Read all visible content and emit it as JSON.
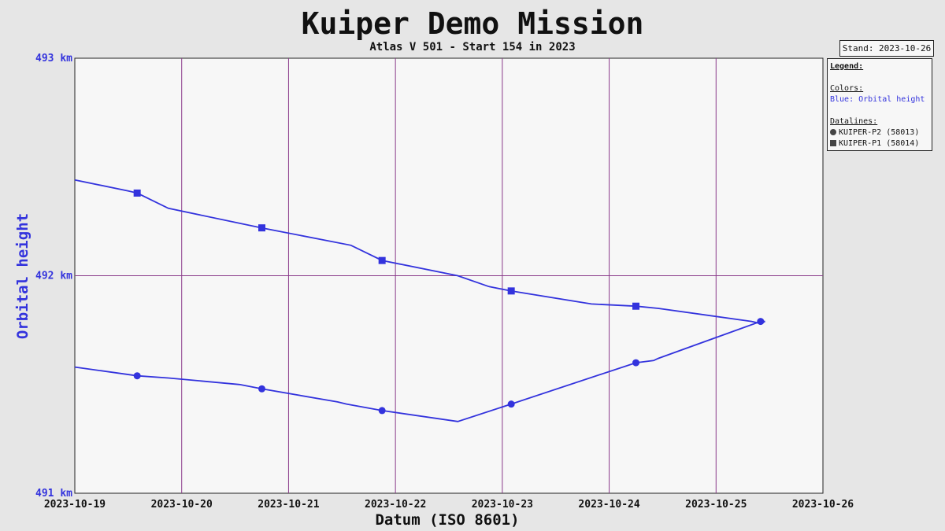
{
  "header": {
    "title": "Kuiper Demo Mission",
    "subtitle": "Atlas V 501 - Start 154 in 2023",
    "stand": "Stand: 2023-10-26"
  },
  "legend": {
    "heading": "Legend:",
    "colors_heading": "Colors:",
    "color_entry": "Blue: Orbital height",
    "datalines_heading": "Datalines:",
    "entries": [
      {
        "label": "KUIPER-P2 (58013)",
        "marker": "circle"
      },
      {
        "label": "KUIPER-P1 (58014)",
        "marker": "square"
      }
    ]
  },
  "colors": {
    "series": "#3333dd",
    "grid": "#8a3a8a",
    "plot_bg": "#f7f7f7"
  },
  "chart_data": {
    "type": "line",
    "title": "Kuiper Demo Mission",
    "subtitle": "Atlas V 501 - Start 154 in 2023",
    "xlabel": "Datum (ISO 8601)",
    "ylabel": "Orbital height",
    "xlim": [
      "2023-10-19",
      "2023-10-26"
    ],
    "ylim": [
      491,
      493
    ],
    "x_ticks": [
      "2023-10-19",
      "2023-10-20",
      "2023-10-21",
      "2023-10-22",
      "2023-10-23",
      "2023-10-24",
      "2023-10-25",
      "2023-10-26"
    ],
    "y_ticks": [
      {
        "value": 491,
        "label": "491 km"
      },
      {
        "value": 492,
        "label": "492 km"
      },
      {
        "value": 493,
        "label": "493 km"
      }
    ],
    "grid": true,
    "legend_position": "right",
    "series": [
      {
        "name": "KUIPER-P1 (58014)",
        "marker": "square",
        "points": [
          [
            "2023-10-19 00:00",
            492.44
          ],
          [
            "2023-10-19 12:00",
            492.39
          ],
          [
            "2023-10-19 14:00",
            492.38
          ],
          [
            "2023-10-19 21:00",
            492.31
          ],
          [
            "2023-10-20 18:00",
            492.22
          ],
          [
            "2023-10-21 14:00",
            492.14
          ],
          [
            "2023-10-21 21:00",
            492.07
          ],
          [
            "2023-10-22 14:00",
            492.0
          ],
          [
            "2023-10-22 21:00",
            491.95
          ],
          [
            "2023-10-23 02:00",
            491.93
          ],
          [
            "2023-10-23 20:00",
            491.87
          ],
          [
            "2023-10-24 06:00",
            491.86
          ],
          [
            "2023-10-24 11:00",
            491.85
          ],
          [
            "2023-10-25 08:00",
            491.79
          ],
          [
            "2023-10-25 10:00",
            491.78
          ],
          [
            "2023-10-25 11:00",
            491.79
          ]
        ],
        "marker_points": [
          [
            "2023-10-19 14:00",
            492.38
          ],
          [
            "2023-10-20 18:00",
            492.22
          ],
          [
            "2023-10-21 21:00",
            492.07
          ],
          [
            "2023-10-23 02:00",
            491.93
          ],
          [
            "2023-10-24 06:00",
            491.86
          ]
        ]
      },
      {
        "name": "KUIPER-P2 (58013)",
        "marker": "circle",
        "points": [
          [
            "2023-10-19 00:00",
            491.58
          ],
          [
            "2023-10-19 14:00",
            491.54
          ],
          [
            "2023-10-19 21:00",
            491.53
          ],
          [
            "2023-10-20 13:00",
            491.5
          ],
          [
            "2023-10-20 18:00",
            491.48
          ],
          [
            "2023-10-21 11:00",
            491.42
          ],
          [
            "2023-10-21 13:00",
            491.41
          ],
          [
            "2023-10-21 21:00",
            491.38
          ],
          [
            "2023-10-22 14:00",
            491.33
          ],
          [
            "2023-10-23 02:00",
            491.41
          ],
          [
            "2023-10-24 06:00",
            491.6
          ],
          [
            "2023-10-24 10:00",
            491.61
          ],
          [
            "2023-10-24 11:00",
            491.62
          ],
          [
            "2023-10-25 10:00",
            491.79
          ],
          [
            "2023-10-25 11:00",
            491.79
          ]
        ],
        "marker_points": [
          [
            "2023-10-19 14:00",
            491.54
          ],
          [
            "2023-10-20 18:00",
            491.48
          ],
          [
            "2023-10-21 21:00",
            491.38
          ],
          [
            "2023-10-23 02:00",
            491.41
          ],
          [
            "2023-10-24 06:00",
            491.6
          ],
          [
            "2023-10-25 10:00",
            491.79
          ]
        ]
      }
    ]
  }
}
